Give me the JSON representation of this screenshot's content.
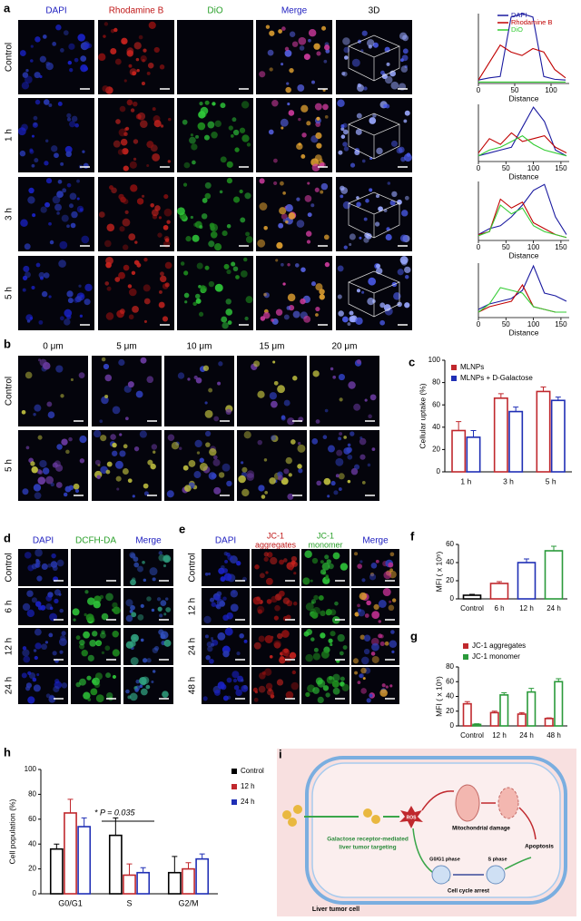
{
  "panel_a": {
    "letter": "a",
    "columns": [
      "DAPI",
      "Rhodamine B",
      "DiO",
      "Merge",
      "3D"
    ],
    "rows": [
      "Control",
      "1 h",
      "3 h",
      "5 h"
    ],
    "profile_legend": [
      {
        "name": "DAPI",
        "color": "#1a1aa0"
      },
      {
        "name": "Rhodamine B",
        "color": "#c00000"
      },
      {
        "name": "DiO",
        "color": "#33cc33"
      }
    ],
    "profiles": [
      {
        "xlabel": "Distance",
        "xlim": [
          0,
          125
        ],
        "xticks": [
          0,
          50,
          100
        ],
        "ylim": [
          0,
          100
        ],
        "x": [
          0,
          15,
          30,
          45,
          60,
          75,
          90,
          105,
          120
        ],
        "values": [
          [
            5,
            8,
            10,
            95,
            100,
            95,
            10,
            6,
            5
          ],
          [
            5,
            30,
            55,
            45,
            40,
            50,
            45,
            20,
            8
          ],
          [
            2,
            2,
            2,
            2,
            2,
            2,
            2,
            2,
            2
          ]
        ]
      },
      {
        "xlabel": "Distance",
        "xlim": [
          0,
          165
        ],
        "xticks": [
          0,
          50,
          100,
          150
        ],
        "ylim": [
          0,
          100
        ],
        "x": [
          0,
          20,
          40,
          60,
          80,
          100,
          120,
          140,
          160
        ],
        "values": [
          [
            10,
            15,
            20,
            25,
            60,
            95,
            70,
            20,
            10
          ],
          [
            15,
            40,
            30,
            50,
            35,
            40,
            45,
            25,
            15
          ],
          [
            10,
            20,
            25,
            35,
            45,
            30,
            20,
            15,
            10
          ]
        ]
      },
      {
        "xlabel": "Distance",
        "xlim": [
          0,
          165
        ],
        "xticks": [
          0,
          50,
          100,
          150
        ],
        "ylim": [
          0,
          100
        ],
        "x": [
          0,
          20,
          40,
          60,
          80,
          100,
          120,
          140,
          160
        ],
        "values": [
          [
            10,
            20,
            25,
            40,
            60,
            85,
            95,
            40,
            10
          ],
          [
            10,
            15,
            70,
            55,
            65,
            30,
            20,
            10,
            5
          ],
          [
            8,
            15,
            60,
            45,
            55,
            25,
            15,
            10,
            5
          ]
        ]
      },
      {
        "xlabel": "Distance",
        "xlim": [
          0,
          165
        ],
        "xticks": [
          0,
          50,
          100,
          150
        ],
        "ylim": [
          0,
          100
        ],
        "x": [
          0,
          20,
          40,
          60,
          80,
          100,
          120,
          140,
          160
        ],
        "values": [
          [
            15,
            25,
            30,
            35,
            50,
            95,
            45,
            40,
            30
          ],
          [
            10,
            20,
            25,
            30,
            60,
            20,
            15,
            10,
            10
          ],
          [
            10,
            25,
            55,
            50,
            45,
            20,
            15,
            10,
            10
          ]
        ]
      }
    ]
  },
  "panel_b": {
    "letter": "b",
    "columns": [
      "0 μm",
      "5 μm",
      "10 μm",
      "15 μm",
      "20 μm"
    ],
    "rows": [
      "Control",
      "5 h"
    ]
  },
  "panel_c": {
    "letter": "c",
    "type": "bar",
    "ylabel": "Cellular uptake (%)",
    "ylim": [
      0,
      100
    ],
    "yticks": [
      0,
      20,
      40,
      60,
      80,
      100
    ],
    "categories": [
      "1 h",
      "3 h",
      "5 h"
    ],
    "series": [
      {
        "name": "MLNPs",
        "color": "#c0282d",
        "values": [
          37,
          66,
          72
        ],
        "errors": [
          8,
          4,
          4
        ]
      },
      {
        "name": "MLNPs + D-Galactose",
        "color": "#1f2fb5",
        "values": [
          31,
          54,
          64
        ],
        "errors": [
          6,
          4,
          3
        ]
      }
    ]
  },
  "panel_d": {
    "letter": "d",
    "columns": [
      "DAPI",
      "DCFH-DA",
      "Merge"
    ],
    "rows": [
      "Control",
      "6 h",
      "12 h",
      "24 h"
    ]
  },
  "panel_e": {
    "letter": "e",
    "columns": [
      "DAPI",
      [
        "JC-1",
        "aggregates"
      ],
      [
        "JC-1",
        "monomer"
      ],
      "Merge"
    ],
    "rows": [
      "Control",
      "12 h",
      "24 h",
      "48 h"
    ]
  },
  "panel_f": {
    "letter": "f",
    "type": "bar",
    "ylabel": "MFI ( x 10⁵)",
    "ylim": [
      0,
      60
    ],
    "yticks": [
      0,
      20,
      40,
      60
    ],
    "categories": [
      "Control",
      "6 h",
      "12 h",
      "24 h"
    ],
    "values": [
      4,
      17,
      40,
      53
    ],
    "errors": [
      1,
      2,
      4,
      5
    ],
    "colors": [
      "#000000",
      "#c0282d",
      "#1f2fb5",
      "#2a9a3a"
    ]
  },
  "panel_g": {
    "letter": "g",
    "type": "bar",
    "ylabel": "MFI ( x 10⁵)",
    "ylim": [
      0,
      80
    ],
    "yticks": [
      0,
      20,
      40,
      60,
      80
    ],
    "categories": [
      "Control",
      "12 h",
      "24 h",
      "48 h"
    ],
    "series": [
      {
        "name": "JC-1 aggregates",
        "color": "#c0282d",
        "values": [
          30,
          18,
          16,
          10
        ],
        "errors": [
          3,
          2,
          2,
          1
        ]
      },
      {
        "name": "JC-1 monomer",
        "color": "#2a9a3a",
        "values": [
          2,
          42,
          46,
          60
        ],
        "errors": [
          1,
          3,
          5,
          4
        ]
      }
    ]
  },
  "panel_h": {
    "letter": "h",
    "type": "bar",
    "ylabel": "Cell population (%)",
    "ylim": [
      0,
      100
    ],
    "yticks": [
      0,
      20,
      40,
      60,
      80,
      100
    ],
    "categories": [
      "G0/G1",
      "S",
      "G2/M"
    ],
    "annotation": "* P = 0.035",
    "series": [
      {
        "name": "Control",
        "color": "#000000",
        "values": [
          36,
          47,
          17
        ],
        "errors": [
          4,
          14,
          13
        ]
      },
      {
        "name": "12 h",
        "color": "#c0282d",
        "values": [
          65,
          15,
          20
        ],
        "errors": [
          11,
          9,
          5
        ]
      },
      {
        "name": "24 h",
        "color": "#1f2fb5",
        "values": [
          54,
          17,
          28
        ],
        "errors": [
          7,
          4,
          4
        ]
      }
    ]
  },
  "panel_i": {
    "letter": "i",
    "targeting": [
      "Galactose receptor-mediated",
      "liver tumor targeting"
    ],
    "ros": "ROS",
    "mito": "Mitochondrial damage",
    "g0g1": "G0/G1 phase",
    "s_phase": "S phase",
    "arrest": "Cell cycle arrest",
    "apoptosis": "Apoptosis",
    "cell": "Liver tumor cell"
  }
}
